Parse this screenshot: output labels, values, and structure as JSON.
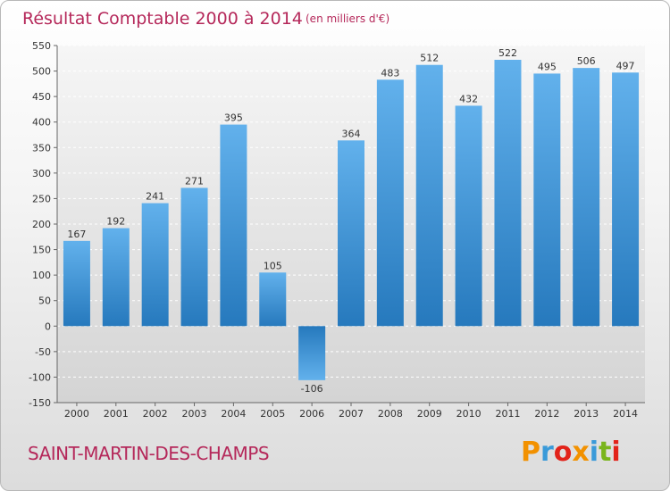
{
  "chart_data": {
    "type": "bar",
    "title": "Résultat Comptable 2000 à 2014",
    "subtitle": "(en milliers d'€)",
    "categories": [
      "2000",
      "2001",
      "2002",
      "2003",
      "2004",
      "2005",
      "2006",
      "2007",
      "2008",
      "2009",
      "2010",
      "2011",
      "2012",
      "2013",
      "2014"
    ],
    "values": [
      167,
      192,
      241,
      271,
      395,
      105,
      -106,
      364,
      483,
      512,
      432,
      522,
      495,
      506,
      497
    ],
    "ylim": [
      -150,
      550
    ],
    "yticks": [
      -150,
      -100,
      -50,
      0,
      50,
      100,
      150,
      200,
      250,
      300,
      350,
      400,
      450,
      500,
      550
    ],
    "grid": true,
    "bar_color": "#3d8fd1"
  },
  "footer": {
    "commune": "SAINT-MARTIN-DES-CHAMPS",
    "logo": "Proxiti",
    "logo_colors": [
      "#f29100",
      "#3a9ad9",
      "#e2231a",
      "#f29100",
      "#3a9ad9",
      "#7ab51d",
      "#e2231a"
    ]
  }
}
